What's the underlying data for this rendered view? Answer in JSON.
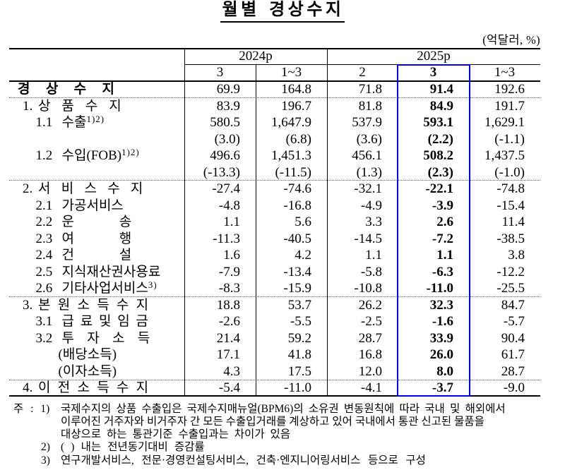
{
  "title": "월별 경상수지",
  "unit_label": "(억달러, %)",
  "table": {
    "col_groups": [
      {
        "label": "2024p",
        "span": 2
      },
      {
        "label": "2025p",
        "span": 3
      }
    ],
    "sub_headers": [
      "3",
      "1~3",
      "2",
      "3",
      "1~3"
    ],
    "highlight": {
      "group": "2025p",
      "column": "3",
      "color": "#0000fa"
    },
    "rows": [
      {
        "prefix": "",
        "label": "경 상 수 지",
        "sup": "",
        "style": "total",
        "values": [
          "69.9",
          "164.8",
          "71.8",
          "91.4",
          "192.6"
        ]
      },
      {
        "prefix": "1.",
        "label": "상 품 수 지",
        "sup": "",
        "style": "section",
        "values": [
          "83.9",
          "196.7",
          "81.8",
          "84.9",
          "191.7"
        ]
      },
      {
        "prefix": "1.1",
        "label": "수출",
        "sup": "1)2)",
        "style": "item",
        "values": [
          "580.5",
          "1,647.9",
          "537.9",
          "593.1",
          "1,629.1"
        ]
      },
      {
        "prefix": "",
        "label": "",
        "sup": "",
        "style": "growth",
        "values": [
          "(3.0)",
          "(6.8)",
          "(3.6)",
          "(2.2)",
          "(-1.1)"
        ]
      },
      {
        "prefix": "1.2",
        "label": "수입(FOB)",
        "sup": "1)2)",
        "style": "item",
        "values": [
          "496.6",
          "1,451.3",
          "456.1",
          "508.2",
          "1,437.5"
        ]
      },
      {
        "prefix": "",
        "label": "",
        "sup": "",
        "style": "growth",
        "values": [
          "(-13.3)",
          "(-11.5)",
          "(1.3)",
          "(2.3)",
          "(-1.0)"
        ]
      },
      {
        "prefix": "2.",
        "label": "서 비 스 수 지",
        "sup": "",
        "style": "section",
        "values": [
          "-27.4",
          "-74.6",
          "-32.1",
          "-22.1",
          "-74.8"
        ]
      },
      {
        "prefix": "2.1",
        "label": "가공서비스",
        "sup": "",
        "style": "item",
        "values": [
          "-4.8",
          "-16.8",
          "-4.9",
          "-3.9",
          "-15.4"
        ]
      },
      {
        "prefix": "2.2",
        "label": "운 송",
        "sup": "",
        "style": "item",
        "values": [
          "1.1",
          "5.6",
          "3.3",
          "2.6",
          "11.4"
        ]
      },
      {
        "prefix": "2.3",
        "label": "여 행",
        "sup": "",
        "style": "item",
        "values": [
          "-11.3",
          "-40.5",
          "-14.5",
          "-7.2",
          "-38.5"
        ]
      },
      {
        "prefix": "2.4",
        "label": "건 설",
        "sup": "",
        "style": "item",
        "values": [
          "1.6",
          "4.2",
          "1.1",
          "1.1",
          "3.8"
        ]
      },
      {
        "prefix": "2.5",
        "label": "지식재산권사용료",
        "sup": "",
        "style": "item",
        "values": [
          "-7.9",
          "-13.4",
          "-5.8",
          "-6.3",
          "-12.2"
        ]
      },
      {
        "prefix": "2.6",
        "label": "기타사업서비스",
        "sup": "3)",
        "style": "item",
        "values": [
          "-8.3",
          "-15.9",
          "-10.8",
          "-11.0",
          "-25.5"
        ]
      },
      {
        "prefix": "3.",
        "label": "본 원 소 득 수 지",
        "sup": "",
        "style": "section",
        "values": [
          "18.8",
          "53.7",
          "26.2",
          "32.3",
          "84.7"
        ]
      },
      {
        "prefix": "3.1",
        "label": "급 료 및 임 금",
        "sup": "",
        "style": "item",
        "values": [
          "-2.6",
          "-5.5",
          "-2.5",
          "-1.6",
          "-5.7"
        ]
      },
      {
        "prefix": "3.2",
        "label": "투 자 소 득",
        "sup": "",
        "style": "item",
        "values": [
          "21.4",
          "59.2",
          "28.7",
          "33.9",
          "90.4"
        ]
      },
      {
        "prefix": "",
        "label": "(배당소득)",
        "sup": "",
        "style": "paren",
        "values": [
          "17.1",
          "41.8",
          "16.8",
          "26.0",
          "61.7"
        ]
      },
      {
        "prefix": "",
        "label": "(이자소득)",
        "sup": "",
        "style": "paren",
        "values": [
          "4.3",
          "17.5",
          "12.0",
          "8.0",
          "28.7"
        ]
      },
      {
        "prefix": "4.",
        "label": "이 전 소 득 수 지",
        "sup": "",
        "style": "section",
        "values": [
          "-5.4",
          "-11.0",
          "-4.1",
          "-3.7",
          "-9.0"
        ]
      }
    ]
  },
  "footnotes": {
    "marker": "주 : ",
    "notes": [
      {
        "num": "1)",
        "lines": [
          "국제수지의 상품 수출입은 국제수지매뉴얼(BPM6)의 소유권 변동원칙에 따라 국내 및 해외에서",
          "이루어진 거주자와 비거주자 간 모든 수출입거래를 계상하고 있어 국내에서 통관 신고된 물품을",
          "대상으로 하는 통관기준 수출입과는 차이가 있음"
        ]
      },
      {
        "num": "2)",
        "lines": [
          "(  ) 내는 전년동기대비 증감률"
        ]
      },
      {
        "num": "3)",
        "lines": [
          "연구개발서비스, 전문·경영컨설팅서비스, 건축·엔지니어링서비스 등으로 구성"
        ]
      }
    ]
  }
}
